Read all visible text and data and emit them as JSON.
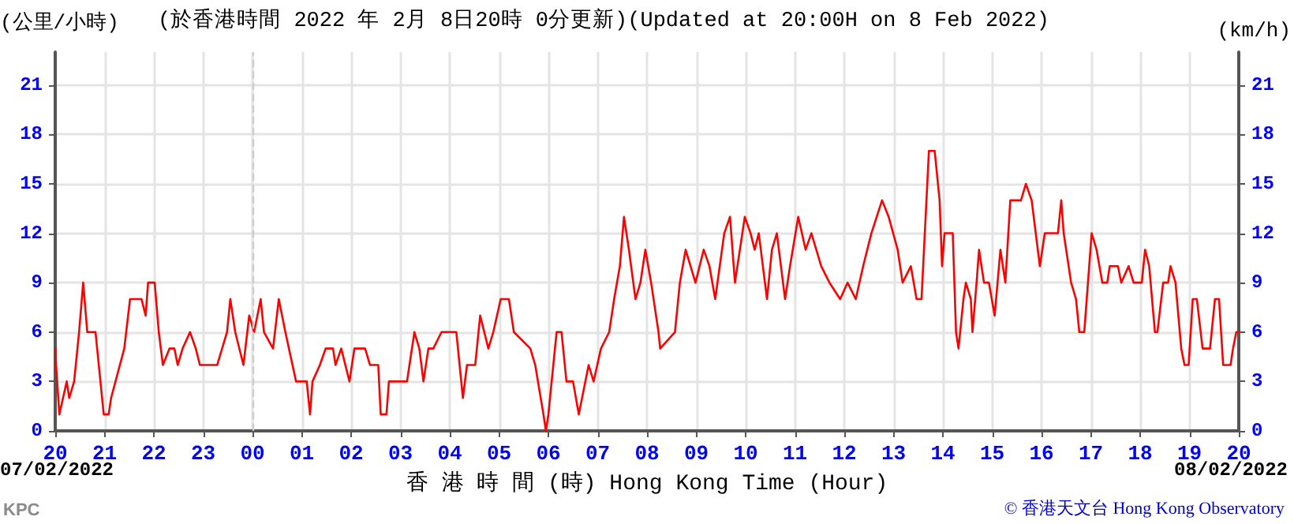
{
  "chart_data": {
    "type": "line",
    "title": "(於香港時間 2022 年 2月 8日20時 0分更新)(Updated at 20:00H on 8 Feb 2022)",
    "ylabel": "(公里/小時)",
    "y2label": "(km/h)",
    "xlabel": "香 港 時 間 (時) Hong Kong Time (Hour)",
    "annotations": [
      "07/02/2022",
      "08/02/2022",
      "KPC",
      "© 香港天文台 Hong Kong Observatory"
    ],
    "x": [
      "2022-02-07T20:00",
      "2022-02-07T20:01",
      "2022-02-07T20:05",
      "2022-02-07T20:14",
      "2022-02-07T20:17",
      "2022-02-07T20:23",
      "2022-02-07T20:29",
      "2022-02-07T20:34",
      "2022-02-07T20:39",
      "2022-02-07T20:49",
      "2022-02-07T20:59",
      "2022-02-07T21:05",
      "2022-02-07T21:08",
      "2022-02-07T21:24",
      "2022-02-07T21:31",
      "2022-02-07T21:45",
      "2022-02-07T21:50",
      "2022-02-07T21:53",
      "2022-02-07T22:01",
      "2022-02-07T22:06",
      "2022-02-07T22:11",
      "2022-02-07T22:19",
      "2022-02-07T22:25",
      "2022-02-07T22:29",
      "2022-02-07T22:35",
      "2022-02-07T22:44",
      "2022-02-07T22:51",
      "2022-02-07T22:56",
      "2022-02-07T23:17",
      "2022-02-07T23:29",
      "2022-02-07T23:33",
      "2022-02-07T23:39",
      "2022-02-07T23:49",
      "2022-02-07T23:56",
      "2022-02-08T00:02",
      "2022-02-08T00:10",
      "2022-02-08T00:14",
      "2022-02-08T00:25",
      "2022-02-08T00:32",
      "2022-02-08T00:40",
      "2022-02-08T00:53",
      "2022-02-08T01:06",
      "2022-02-08T01:10",
      "2022-02-08T01:13",
      "2022-02-08T01:22",
      "2022-02-08T01:29",
      "2022-02-08T01:38",
      "2022-02-08T01:41",
      "2022-02-08T01:48",
      "2022-02-08T01:58",
      "2022-02-08T02:04",
      "2022-02-08T02:17",
      "2022-02-08T02:23",
      "2022-02-08T02:33",
      "2022-02-08T02:36",
      "2022-02-08T02:43",
      "2022-02-08T02:46",
      "2022-02-08T03:08",
      "2022-02-08T03:11",
      "2022-02-08T03:17",
      "2022-02-08T03:23",
      "2022-02-08T03:28",
      "2022-02-08T03:34",
      "2022-02-08T03:40",
      "2022-02-08T03:50",
      "2022-02-08T04:00",
      "2022-02-08T04:08",
      "2022-02-08T04:16",
      "2022-02-08T04:21",
      "2022-02-08T04:31",
      "2022-02-08T04:37",
      "2022-02-08T04:47",
      "2022-02-08T04:53",
      "2022-02-08T05:02",
      "2022-02-08T05:12",
      "2022-02-08T05:18",
      "2022-02-08T05:38",
      "2022-02-08T05:44",
      "2022-02-08T05:54",
      "2022-02-08T05:57",
      "2022-02-08T06:00",
      "2022-02-08T06:10",
      "2022-02-08T06:16",
      "2022-02-08T06:22",
      "2022-02-08T06:30",
      "2022-02-08T06:37",
      "2022-02-08T06:49",
      "2022-02-08T06:55",
      "2022-02-08T07:04",
      "2022-02-08T07:14",
      "2022-02-08T07:20",
      "2022-02-08T07:27",
      "2022-02-08T07:32",
      "2022-02-08T07:38",
      "2022-02-08T07:46",
      "2022-02-08T07:52",
      "2022-02-08T07:58",
      "2022-02-08T08:05",
      "2022-02-08T08:14",
      "2022-02-08T08:16",
      "2022-02-08T08:34",
      "2022-02-08T08:40",
      "2022-02-08T08:47",
      "2022-02-08T08:53",
      "2022-02-08T08:59",
      "2022-02-08T09:09",
      "2022-02-08T09:16",
      "2022-02-08T09:23",
      "2022-02-08T09:34",
      "2022-02-08T09:41",
      "2022-02-08T09:47",
      "2022-02-08T09:59",
      "2022-02-08T10:06",
      "2022-02-08T10:11",
      "2022-02-08T10:16",
      "2022-02-08T10:26",
      "2022-02-08T10:32",
      "2022-02-08T10:38",
      "2022-02-08T10:48",
      "2022-02-08T10:54",
      "2022-02-08T11:04",
      "2022-02-08T11:13",
      "2022-02-08T11:20",
      "2022-02-08T11:32",
      "2022-02-08T11:42",
      "2022-02-08T11:55",
      "2022-02-08T12:04",
      "2022-02-08T12:14",
      "2022-02-08T12:23",
      "2022-02-08T12:33",
      "2022-02-08T12:46",
      "2022-02-08T12:54",
      "2022-02-08T13:05",
      "2022-02-08T13:11",
      "2022-02-08T13:21",
      "2022-02-08T13:28",
      "2022-02-08T13:34",
      "2022-02-08T13:40",
      "2022-02-08T13:43",
      "2022-02-08T13:50",
      "2022-02-08T13:56",
      "2022-02-08T13:59",
      "2022-02-08T14:02",
      "2022-02-08T14:12",
      "2022-02-08T14:16",
      "2022-02-08T14:19",
      "2022-02-08T14:25",
      "2022-02-08T14:28",
      "2022-02-08T14:34",
      "2022-02-08T14:36",
      "2022-02-08T14:41",
      "2022-02-08T14:44",
      "2022-02-08T14:50",
      "2022-02-08T14:56",
      "2022-02-08T15:03",
      "2022-02-08T15:10",
      "2022-02-08T15:16",
      "2022-02-08T15:22",
      "2022-02-08T15:29",
      "2022-02-08T15:35",
      "2022-02-08T15:41",
      "2022-02-08T15:48",
      "2022-02-08T15:58",
      "2022-02-08T16:04",
      "2022-02-08T16:20",
      "2022-02-08T16:24",
      "2022-02-08T16:27",
      "2022-02-08T16:36",
      "2022-02-08T16:42",
      "2022-02-08T16:46",
      "2022-02-08T16:52",
      "2022-02-08T16:58",
      "2022-02-08T17:01",
      "2022-02-08T17:07",
      "2022-02-08T17:14",
      "2022-02-08T17:20",
      "2022-02-08T17:23",
      "2022-02-08T17:33",
      "2022-02-08T17:37",
      "2022-02-08T17:46",
      "2022-02-08T17:52",
      "2022-02-08T18:02",
      "2022-02-08T18:06",
      "2022-02-08T18:11",
      "2022-02-08T18:18",
      "2022-02-08T18:21",
      "2022-02-08T18:28",
      "2022-02-08T18:34",
      "2022-02-08T18:37",
      "2022-02-08T18:43",
      "2022-02-08T18:50",
      "2022-02-08T18:54",
      "2022-02-08T18:59",
      "2022-02-08T19:04",
      "2022-02-08T19:09",
      "2022-02-08T19:16",
      "2022-02-08T19:25",
      "2022-02-08T19:31",
      "2022-02-08T19:36",
      "2022-02-08T19:41",
      "2022-02-08T19:50",
      "2022-02-08T19:53",
      "2022-02-08T19:57",
      "2022-02-08T20:00"
    ],
    "series": [
      {
        "color": "#ff0000",
        "values": [
          5,
          4,
          1,
          3,
          2,
          3,
          6,
          9,
          6,
          6,
          1,
          1,
          2,
          5,
          8,
          8,
          7,
          9,
          9,
          6,
          4,
          5,
          5,
          4,
          5,
          6,
          5,
          4,
          4,
          6,
          8,
          6,
          4,
          7,
          6,
          8,
          6,
          5,
          8,
          6,
          3,
          3,
          1,
          3,
          4,
          5,
          5,
          4,
          5,
          3,
          5,
          5,
          4,
          4,
          1,
          1,
          3,
          3,
          4,
          6,
          5,
          3,
          5,
          5,
          6,
          6,
          6,
          2,
          4,
          4,
          7,
          5,
          6,
          8,
          8,
          6,
          5,
          4,
          1,
          0,
          1,
          6,
          6,
          3,
          3,
          1,
          4,
          3,
          5,
          6,
          8,
          10,
          13,
          11,
          8,
          9,
          11,
          9,
          6,
          5,
          6,
          9,
          11,
          10,
          9,
          11,
          10,
          8,
          12,
          13,
          9,
          13,
          12,
          11,
          12,
          8,
          11,
          12,
          8,
          10,
          13,
          11,
          12,
          10,
          9,
          8,
          9,
          8,
          10,
          12,
          14,
          13,
          11,
          9,
          10,
          8,
          8,
          14,
          17,
          17,
          14,
          10,
          12,
          12,
          6,
          5,
          8,
          9,
          8,
          6,
          9,
          11,
          9,
          9,
          7,
          11,
          9,
          14,
          14,
          14,
          15,
          14,
          10,
          12,
          12,
          14,
          12,
          9,
          8,
          6,
          6,
          10,
          12,
          11,
          9,
          9,
          10,
          10,
          9,
          10,
          9,
          9,
          11,
          10,
          6,
          6,
          9,
          9,
          10,
          9,
          5,
          4,
          4,
          8,
          8,
          5,
          5,
          8,
          8,
          4,
          4,
          5,
          6,
          6
        ]
      }
    ],
    "xlim": [
      "2022-02-07T20:00",
      "2022-02-08T20:00"
    ],
    "xticks": [
      {
        "value": "2022-02-07T20:00",
        "label": "20"
      },
      {
        "value": "2022-02-07T21:00",
        "label": "21"
      },
      {
        "value": "2022-02-07T22:00",
        "label": "22"
      },
      {
        "value": "2022-02-07T23:00",
        "label": "23"
      },
      {
        "value": "2022-02-08T00:00",
        "label": "00"
      },
      {
        "value": "2022-02-08T01:00",
        "label": "01"
      },
      {
        "value": "2022-02-08T02:00",
        "label": "02"
      },
      {
        "value": "2022-02-08T03:00",
        "label": "03"
      },
      {
        "value": "2022-02-08T04:00",
        "label": "04"
      },
      {
        "value": "2022-02-08T05:00",
        "label": "05"
      },
      {
        "value": "2022-02-08T06:00",
        "label": "06"
      },
      {
        "value": "2022-02-08T07:00",
        "label": "07"
      },
      {
        "value": "2022-02-08T08:00",
        "label": "08"
      },
      {
        "value": "2022-02-08T09:00",
        "label": "09"
      },
      {
        "value": "2022-02-08T10:00",
        "label": "10"
      },
      {
        "value": "2022-02-08T11:00",
        "label": "11"
      },
      {
        "value": "2022-02-08T12:00",
        "label": "12"
      },
      {
        "value": "2022-02-08T13:00",
        "label": "13"
      },
      {
        "value": "2022-02-08T14:00",
        "label": "14"
      },
      {
        "value": "2022-02-08T15:00",
        "label": "15"
      },
      {
        "value": "2022-02-08T16:00",
        "label": "16"
      },
      {
        "value": "2022-02-08T17:00",
        "label": "17"
      },
      {
        "value": "2022-02-08T18:00",
        "label": "18"
      },
      {
        "value": "2022-02-08T19:00",
        "label": "19"
      },
      {
        "value": "2022-02-08T20:00",
        "label": "20"
      }
    ],
    "ylim": [
      0,
      23
    ],
    "yticks": [
      0,
      3,
      6,
      9,
      12,
      15,
      18,
      21
    ],
    "y2lim": [
      0,
      23
    ],
    "y2ticks": [
      0,
      3,
      6,
      9,
      12,
      15,
      18,
      21
    ],
    "ref_lines": [
      {
        "axis": "x",
        "value": "2022-02-08T00:00",
        "color": "#cccccc",
        "line_style": "dashed"
      }
    ],
    "grid": true,
    "marker": "none",
    "line_style": "solid"
  }
}
